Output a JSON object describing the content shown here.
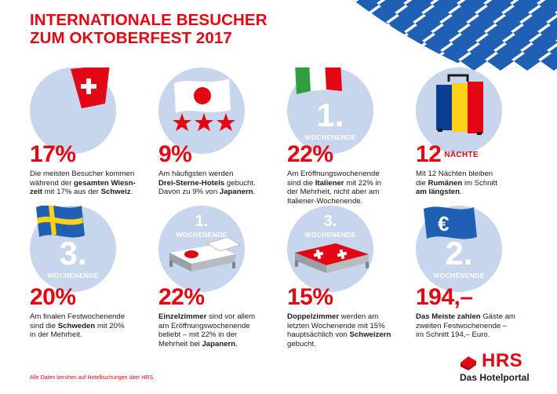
{
  "title": {
    "line1": "INTERNATIONALE BESUCHER",
    "line2": "ZUM OKTOBERFEST 2017"
  },
  "colors": {
    "accent": "#e30613",
    "circle": "#c7d6ec",
    "bavaria_blue": "#1f5fb4"
  },
  "cards": [
    {
      "stat": "17%",
      "icon": "swiss-flag-icon",
      "desc": [
        "Die meisten Besucher kommen",
        "während der ",
        "gesamten Wiesn-",
        "zeit",
        " mit 17% aus der ",
        "Schweiz",
        "."
      ]
    },
    {
      "stat": "9%",
      "icon": "japan-flag-three-stars-icon",
      "desc": [
        "Am häufigsten werden",
        "Drei-Sterne-Hotels",
        " gebucht.",
        "Davon zu 9% von ",
        "Japanern",
        "."
      ]
    },
    {
      "stat": "22%",
      "icon": "italy-flag-icon",
      "week_num": "1.",
      "week_label": "WOCHENENDE",
      "desc": [
        "Am Eröffnungswochenende",
        "sind die ",
        "Italiener",
        " mit 22% in",
        "der Mehrheit, nicht aber am",
        "Italiener-Wochenende."
      ]
    },
    {
      "stat": "12",
      "stat_unit": "NÄCHTE",
      "icon": "romania-suitcase-icon",
      "desc": [
        "Mit 12 Nächten bleiben",
        "die ",
        "Rumänen",
        " im Schnitt",
        "am längsten",
        "."
      ]
    },
    {
      "stat": "20%",
      "icon": "sweden-flag-icon",
      "week_num": "3.",
      "week_label": "WOCHENENDE",
      "desc": [
        "Am finalen Festwochenende",
        "sind die ",
        "Schweden",
        " mit 20%",
        "in der Mehrheit."
      ]
    },
    {
      "stat": "22%",
      "icon": "single-bed-japan-icon",
      "week_num": "1.",
      "week_label": "WOCHENENDE",
      "desc": [
        "Einzelzimmer",
        " sind vor allem",
        "am Eröffnungswochenende",
        "beliebt – mit 22% in der",
        "Mehrheit bei ",
        "Japanern",
        "."
      ]
    },
    {
      "stat": "15%",
      "icon": "double-bed-swiss-icon",
      "week_num": "3.",
      "week_label": "WOCHENENDE",
      "desc": [
        "Doppelzimmer",
        " werden am",
        "letzten Wochenende mit 15%",
        "hauptsächlich von ",
        "Schweizern",
        "gebucht."
      ]
    },
    {
      "stat": "194,–",
      "icon": "euro-flag-icon",
      "week_num": "2.",
      "week_label": "WOCHENENDE",
      "desc": [
        "Das Meiste zahlen",
        " Gäste am",
        "zweiten Festwochenende –",
        "im Schnitt 194,– Euro."
      ]
    }
  ],
  "footnote": "Alle Daten beruhen auf Hotelbuchungen über HRS.",
  "logo": {
    "brand": "HRS",
    "sub": "Das Hotelportal"
  }
}
